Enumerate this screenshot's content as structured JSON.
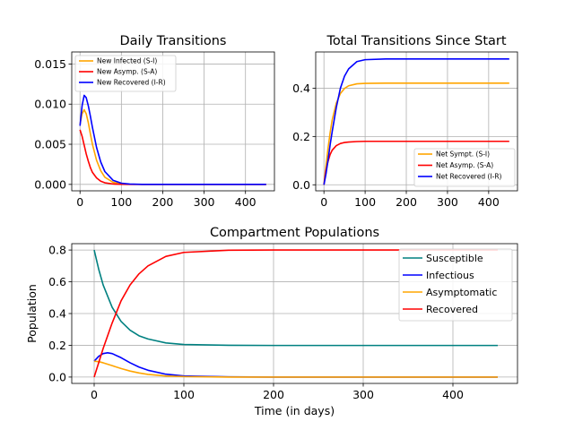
{
  "chart_data": [
    {
      "type": "line",
      "title": "Daily Transitions",
      "xlabel": "",
      "ylabel": "",
      "xlim": [
        -20,
        470
      ],
      "ylim": [
        -0.0008,
        0.0165
      ],
      "xticks": [
        0,
        100,
        200,
        300,
        400
      ],
      "yticks": [
        0.0,
        0.005,
        0.01,
        0.015
      ],
      "ytick_labels": [
        "0.000",
        "0.005",
        "0.010",
        "0.015"
      ],
      "grid": true,
      "legend": "top-left",
      "series": [
        {
          "name": "New Infected (S-I)",
          "color": "#ffa500",
          "x": [
            0,
            5,
            10,
            15,
            20,
            25,
            30,
            40,
            50,
            60,
            80,
            100,
            120,
            150,
            200,
            300,
            450
          ],
          "values": [
            0.0075,
            0.0088,
            0.0093,
            0.0088,
            0.0077,
            0.0063,
            0.005,
            0.003,
            0.0017,
            0.0009,
            0.00025,
            7e-05,
            2e-05,
            0.0,
            0.0,
            0.0,
            0.0
          ]
        },
        {
          "name": "New Asymp. (S-A)",
          "color": "#ff0000",
          "x": [
            0,
            5,
            10,
            15,
            20,
            25,
            30,
            40,
            50,
            60,
            80,
            100,
            120,
            150,
            200,
            300,
            450
          ],
          "values": [
            0.0068,
            0.006,
            0.0049,
            0.0038,
            0.0029,
            0.0021,
            0.0015,
            0.0008,
            0.0004,
            0.0002,
            5e-05,
            1e-05,
            0.0,
            0.0,
            0.0,
            0.0,
            0.0
          ]
        },
        {
          "name": "New Recovered (I-R)",
          "color": "#0000ff",
          "x": [
            0,
            5,
            10,
            15,
            20,
            25,
            30,
            40,
            50,
            60,
            80,
            100,
            120,
            150,
            200,
            300,
            450
          ],
          "values": [
            0.0073,
            0.0098,
            0.0111,
            0.0108,
            0.0098,
            0.0085,
            0.0071,
            0.0046,
            0.0028,
            0.0016,
            0.0005,
            0.00015,
            4e-05,
            0.0,
            0.0,
            0.0,
            0.0
          ]
        }
      ]
    },
    {
      "type": "line",
      "title": "Total Transitions Since Start",
      "xlabel": "",
      "ylabel": "",
      "xlim": [
        -20,
        470
      ],
      "ylim": [
        -0.025,
        0.55
      ],
      "xticks": [
        0,
        100,
        200,
        300,
        400
      ],
      "yticks": [
        0.0,
        0.2,
        0.4
      ],
      "ytick_labels": [
        "0.0",
        "0.2",
        "0.4"
      ],
      "grid": true,
      "legend": "bottom-right",
      "series": [
        {
          "name": "Net Sympt. (S-I)",
          "color": "#ffa500",
          "x": [
            0,
            5,
            10,
            15,
            20,
            30,
            40,
            50,
            60,
            80,
            100,
            150,
            200,
            300,
            450
          ],
          "values": [
            0.0,
            0.078,
            0.152,
            0.215,
            0.268,
            0.338,
            0.378,
            0.399,
            0.41,
            0.418,
            0.42,
            0.421,
            0.421,
            0.421,
            0.421
          ]
        },
        {
          "name": "Net Asymp. (S-A)",
          "color": "#ff0000",
          "x": [
            0,
            5,
            10,
            15,
            20,
            30,
            40,
            50,
            60,
            80,
            100,
            150,
            200,
            300,
            450
          ],
          "values": [
            0.0,
            0.06,
            0.097,
            0.125,
            0.143,
            0.162,
            0.171,
            0.175,
            0.177,
            0.179,
            0.18,
            0.18,
            0.18,
            0.18,
            0.18
          ]
        },
        {
          "name": "Net Recovered (I-R)",
          "color": "#0000ff",
          "x": [
            0,
            5,
            10,
            15,
            20,
            30,
            40,
            50,
            60,
            80,
            100,
            150,
            200,
            300,
            450
          ],
          "values": [
            0.0,
            0.045,
            0.103,
            0.165,
            0.22,
            0.32,
            0.4,
            0.45,
            0.48,
            0.51,
            0.518,
            0.521,
            0.521,
            0.521,
            0.521
          ]
        }
      ]
    },
    {
      "type": "line",
      "title": "Compartment Populations",
      "xlabel": "Time (in days)",
      "ylabel": "Population",
      "xlim": [
        -25,
        472
      ],
      "ylim": [
        -0.04,
        0.84
      ],
      "xticks": [
        0,
        100,
        200,
        300,
        400
      ],
      "yticks": [
        0.0,
        0.2,
        0.4,
        0.6,
        0.8
      ],
      "ytick_labels": [
        "0.0",
        "0.2",
        "0.4",
        "0.6",
        "0.8"
      ],
      "grid": true,
      "legend": "top-right",
      "series": [
        {
          "name": "Susceptible",
          "color": "#008080",
          "x": [
            0,
            5,
            10,
            20,
            30,
            40,
            50,
            60,
            80,
            100,
            150,
            200,
            300,
            450
          ],
          "values": [
            0.8,
            0.68,
            0.58,
            0.44,
            0.35,
            0.295,
            0.26,
            0.24,
            0.215,
            0.205,
            0.2,
            0.199,
            0.199,
            0.199
          ]
        },
        {
          "name": "Infectious",
          "color": "#0000ff",
          "x": [
            0,
            5,
            10,
            15,
            20,
            30,
            40,
            50,
            60,
            80,
            100,
            150,
            200,
            300,
            450
          ],
          "values": [
            0.1,
            0.13,
            0.148,
            0.153,
            0.148,
            0.122,
            0.09,
            0.063,
            0.043,
            0.018,
            0.007,
            0.001,
            0.0,
            0.0,
            0.0
          ]
        },
        {
          "name": "Asymptomatic",
          "color": "#ffa500",
          "x": [
            0,
            5,
            10,
            20,
            30,
            40,
            50,
            60,
            80,
            100,
            150,
            200,
            300,
            450
          ],
          "values": [
            0.1,
            0.097,
            0.09,
            0.072,
            0.054,
            0.038,
            0.026,
            0.017,
            0.007,
            0.003,
            0.0,
            0.0,
            0.0,
            0.0
          ]
        },
        {
          "name": "Recovered",
          "color": "#ff0000",
          "x": [
            0,
            5,
            10,
            20,
            30,
            40,
            50,
            60,
            80,
            100,
            150,
            200,
            300,
            450
          ],
          "values": [
            0.0,
            0.09,
            0.18,
            0.34,
            0.48,
            0.58,
            0.65,
            0.7,
            0.76,
            0.785,
            0.799,
            0.8,
            0.8,
            0.8
          ]
        }
      ]
    }
  ]
}
